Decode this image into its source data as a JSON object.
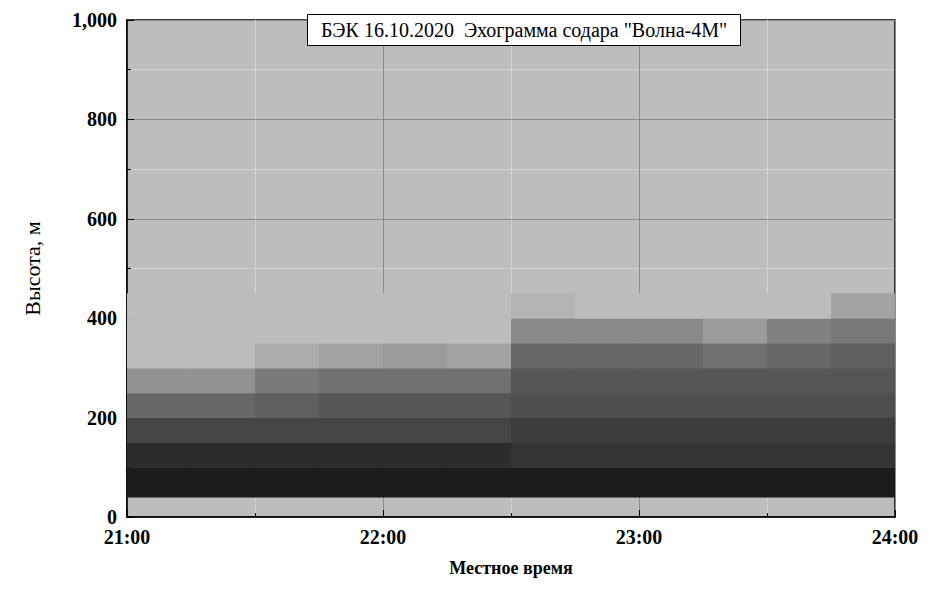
{
  "chart_data": {
    "type": "heatmap",
    "title": "БЭК 16.10.2020  Эхограмма содара \"Волна-4М\"",
    "x_label": "Местное время",
    "y_label": "Высота, м",
    "xlim": [
      21,
      24
    ],
    "xticks": [
      {
        "value": 21,
        "label": "21:00"
      },
      {
        "value": 22,
        "label": "22:00"
      },
      {
        "value": 23,
        "label": "23:00"
      },
      {
        "value": 24,
        "label": "24:00"
      }
    ],
    "ylim": [
      0,
      1000
    ],
    "yticks": [
      0,
      200,
      400,
      600,
      800,
      1000
    ],
    "grid": true,
    "x_bins": [
      21,
      21.25,
      21.5,
      21.75,
      22,
      22.25,
      22.5,
      22.75,
      23,
      23.25,
      23.5,
      23.75,
      24
    ],
    "y_bins": [
      40,
      100,
      150,
      200,
      250,
      300,
      350,
      400,
      450
    ],
    "cell_range": [
      0,
      1
    ],
    "cells": [
      [
        0.95,
        0.95,
        0.95,
        0.95,
        0.95,
        0.95,
        0.95,
        0.95,
        0.95,
        0.95,
        0.95,
        0.95
      ],
      [
        0.85,
        0.85,
        0.85,
        0.85,
        0.85,
        0.85,
        0.8,
        0.8,
        0.8,
        0.8,
        0.8,
        0.8
      ],
      [
        0.7,
        0.7,
        0.7,
        0.7,
        0.7,
        0.7,
        0.75,
        0.75,
        0.75,
        0.75,
        0.75,
        0.75
      ],
      [
        0.5,
        0.5,
        0.55,
        0.6,
        0.6,
        0.6,
        0.65,
        0.65,
        0.65,
        0.65,
        0.65,
        0.65
      ],
      [
        0.25,
        0.25,
        0.4,
        0.45,
        0.45,
        0.45,
        0.6,
        0.6,
        0.6,
        0.6,
        0.6,
        0.6
      ],
      [
        0,
        0,
        0.1,
        0.15,
        0.2,
        0.15,
        0.5,
        0.5,
        0.5,
        0.45,
        0.5,
        0.55
      ],
      [
        0,
        0,
        0,
        0,
        0,
        0,
        0.3,
        0.3,
        0.3,
        0.2,
        0.35,
        0.4
      ],
      [
        0,
        0,
        0,
        0,
        0,
        0,
        0.05,
        0,
        0,
        0,
        0,
        0.15
      ]
    ]
  }
}
